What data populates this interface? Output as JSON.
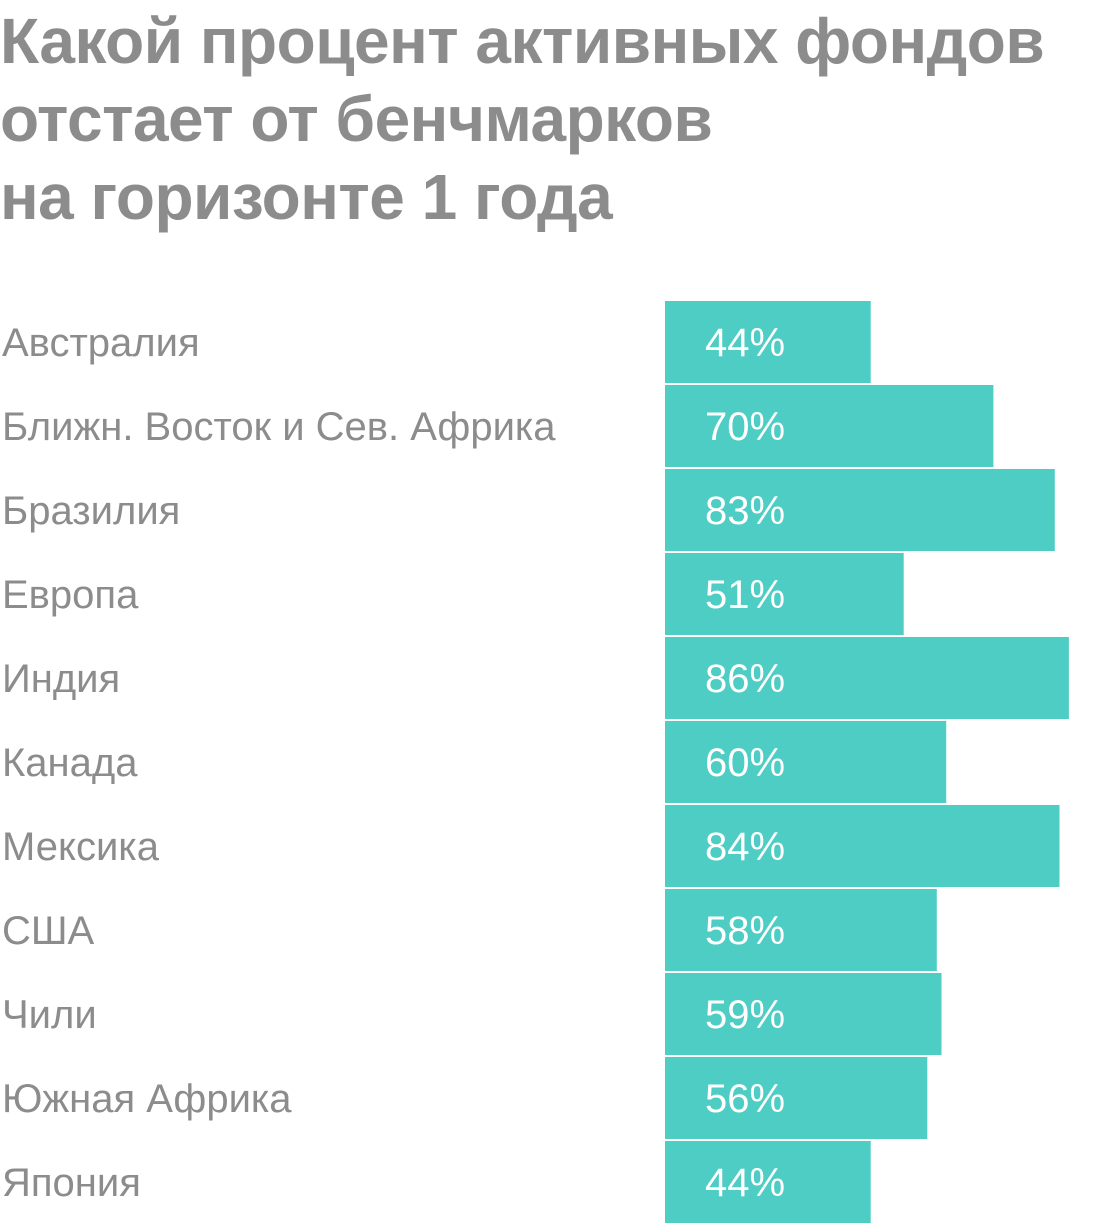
{
  "chart_data": {
    "type": "bar",
    "orientation": "horizontal",
    "title_lines": [
      "Какой процент активных фондов",
      "отстает от бенчмарков",
      "на горизонте 1 года"
    ],
    "categories": [
      "Австралия",
      "Ближн. Восток и Сев. Африка",
      "Бразилия",
      "Европа",
      "Индия",
      "Канада",
      "Мексика",
      "США",
      "Чили",
      "Южная Африка",
      "Япония"
    ],
    "values": [
      44,
      70,
      83,
      51,
      86,
      60,
      84,
      58,
      59,
      56,
      44
    ],
    "value_labels": [
      "44%",
      "70%",
      "83%",
      "51%",
      "86%",
      "60%",
      "84%",
      "58%",
      "59%",
      "56%",
      "44%"
    ],
    "unit": "%",
    "grid": false,
    "legend": "none",
    "colors": {
      "bar": "#4ecdc4",
      "title": "#8c8c8c",
      "category_label": "#8c8c8c",
      "value_label": "#ffffff"
    }
  }
}
